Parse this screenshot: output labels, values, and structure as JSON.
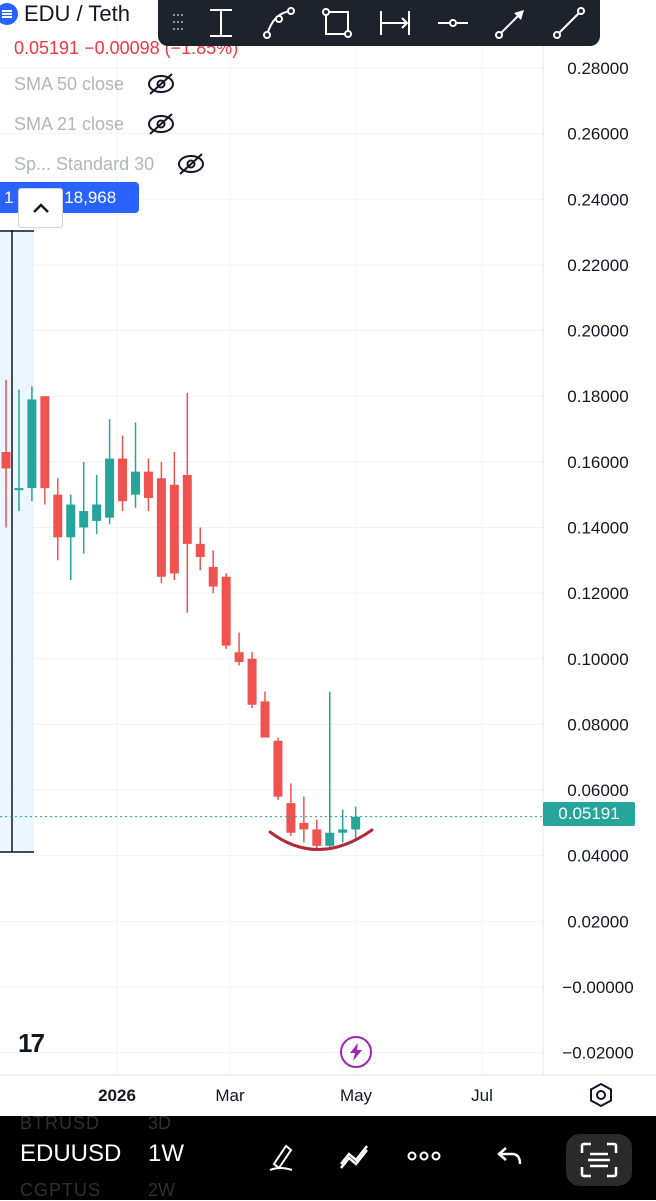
{
  "symbol": {
    "title": "EDU / Teth",
    "icon": "tether-coin-icon"
  },
  "quote": {
    "change_text": "0.05191 −0.00098 (−1.85%)"
  },
  "indicators": [
    {
      "label": "SMA 50 close",
      "icon": "eye-hidden-icon"
    },
    {
      "label": "SMA 21 close",
      "icon": "eye-hidden-icon"
    },
    {
      "label": "Sp...  Standard 30",
      "icon": "eye-hidden-icon"
    }
  ],
  "volume_chip": {
    "left_text": "1 34%",
    "right_text": "18,968",
    "collapse_icon": "chevron-up-icon"
  },
  "drawing_toolbar": {
    "tools": [
      "vertical-measure-icon",
      "curve-tool-icon",
      "rectangle-tool-icon",
      "date-range-icon",
      "horizontal-line-icon",
      "arrow-tool-icon",
      "trend-line-icon"
    ]
  },
  "price_axis": {
    "labels": [
      "0.28000",
      "0.26000",
      "0.24000",
      "0.22000",
      "0.20000",
      "0.18000",
      "0.16000",
      "0.14000",
      "0.12000",
      "0.10000",
      "0.08000",
      "0.06000",
      "0.04000",
      "0.02000",
      "−0.00000",
      "−0.02000"
    ],
    "current_price": "0.05191"
  },
  "time_axis": {
    "labels": [
      {
        "text": "2026",
        "bold": true
      },
      {
        "text": "Mar",
        "bold": false
      },
      {
        "text": "May",
        "bold": false
      },
      {
        "text": "Jul",
        "bold": false
      }
    ]
  },
  "colors": {
    "up": "#26a69a",
    "down": "#ef5350",
    "accent": "#2962ff",
    "annotation": "#b22a3a"
  },
  "chart_data": {
    "type": "candlestick",
    "interval": "1W",
    "ylim": [
      -0.025,
      0.29
    ],
    "candles": [
      {
        "o": 0.163,
        "h": 0.185,
        "l": 0.14,
        "c": 0.158
      },
      {
        "o": 0.152,
        "h": 0.182,
        "l": 0.145,
        "c": 0.152
      },
      {
        "o": 0.152,
        "h": 0.183,
        "l": 0.148,
        "c": 0.179
      },
      {
        "o": 0.18,
        "h": 0.18,
        "l": 0.147,
        "c": 0.152
      },
      {
        "o": 0.15,
        "h": 0.155,
        "l": 0.13,
        "c": 0.137
      },
      {
        "o": 0.137,
        "h": 0.15,
        "l": 0.124,
        "c": 0.147
      },
      {
        "o": 0.14,
        "h": 0.16,
        "l": 0.132,
        "c": 0.145
      },
      {
        "o": 0.142,
        "h": 0.156,
        "l": 0.138,
        "c": 0.147
      },
      {
        "o": 0.143,
        "h": 0.173,
        "l": 0.141,
        "c": 0.161
      },
      {
        "o": 0.161,
        "h": 0.168,
        "l": 0.145,
        "c": 0.148
      },
      {
        "o": 0.15,
        "h": 0.172,
        "l": 0.146,
        "c": 0.157
      },
      {
        "o": 0.157,
        "h": 0.161,
        "l": 0.145,
        "c": 0.149
      },
      {
        "o": 0.155,
        "h": 0.16,
        "l": 0.123,
        "c": 0.125
      },
      {
        "o": 0.153,
        "h": 0.163,
        "l": 0.124,
        "c": 0.126
      },
      {
        "o": 0.156,
        "h": 0.181,
        "l": 0.114,
        "c": 0.135
      },
      {
        "o": 0.135,
        "h": 0.14,
        "l": 0.127,
        "c": 0.131
      },
      {
        "o": 0.128,
        "h": 0.133,
        "l": 0.12,
        "c": 0.122
      },
      {
        "o": 0.125,
        "h": 0.126,
        "l": 0.103,
        "c": 0.104
      },
      {
        "o": 0.102,
        "h": 0.108,
        "l": 0.098,
        "c": 0.099
      },
      {
        "o": 0.1,
        "h": 0.102,
        "l": 0.085,
        "c": 0.086
      },
      {
        "o": 0.087,
        "h": 0.09,
        "l": 0.076,
        "c": 0.076
      },
      {
        "o": 0.075,
        "h": 0.076,
        "l": 0.057,
        "c": 0.058
      },
      {
        "o": 0.056,
        "h": 0.062,
        "l": 0.046,
        "c": 0.047
      },
      {
        "o": 0.05,
        "h": 0.058,
        "l": 0.044,
        "c": 0.048
      },
      {
        "o": 0.048,
        "h": 0.051,
        "l": 0.042,
        "c": 0.043
      },
      {
        "o": 0.043,
        "h": 0.09,
        "l": 0.042,
        "c": 0.047
      },
      {
        "o": 0.047,
        "h": 0.054,
        "l": 0.044,
        "c": 0.048
      },
      {
        "o": 0.048,
        "h": 0.055,
        "l": 0.045,
        "c": 0.0519
      }
    ]
  },
  "bottom_bar": {
    "ticker": "EDUUSD",
    "interval": "1W",
    "ghost_above_ticker": "BTRUSD",
    "ghost_above_interval": "3D",
    "ghost_below_ticker": "CGPTUS",
    "ghost_below_interval": "2W",
    "buttons": [
      "pen-tool-icon",
      "drawings-icon",
      "more-icon",
      "undo-icon",
      "scan-icon"
    ]
  },
  "brand": {
    "logo_text": "17",
    "lightning_icon": "lightning-icon",
    "settings_icon": "settings-icon"
  }
}
